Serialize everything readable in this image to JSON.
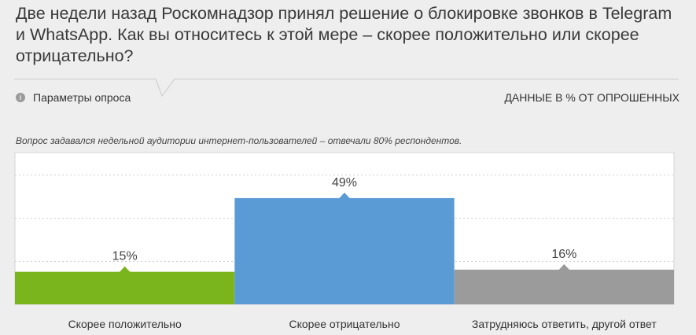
{
  "question": "Две недели назад Роскомнадзор принял решение о блокировке звонков в Telegram и WhatsApp. Как вы относитесь к этой мере – скорее положительно или скорее отрицательно?",
  "survey_params_label": "Параметры опроса",
  "info_icon_glyph": "i",
  "units_label": "ДАННЫЕ В % ОТ ОПРОШЕННЫХ",
  "note": "Вопрос задавался недельной аудитории интернет-пользователей – отвечали 80% респондентов.",
  "chart_data": {
    "type": "bar",
    "categories": [
      "Скорее положительно",
      "Скорее отрицательно",
      "Затрудняюсь ответить, другой ответ"
    ],
    "values": [
      15,
      49,
      16
    ],
    "value_labels": [
      "15%",
      "49%",
      "16%"
    ],
    "colors": [
      "#7ab51d",
      "#5b9bd5",
      "#9b9b9b"
    ],
    "ylim": [
      0,
      70
    ],
    "grid": true,
    "legend": "none"
  }
}
